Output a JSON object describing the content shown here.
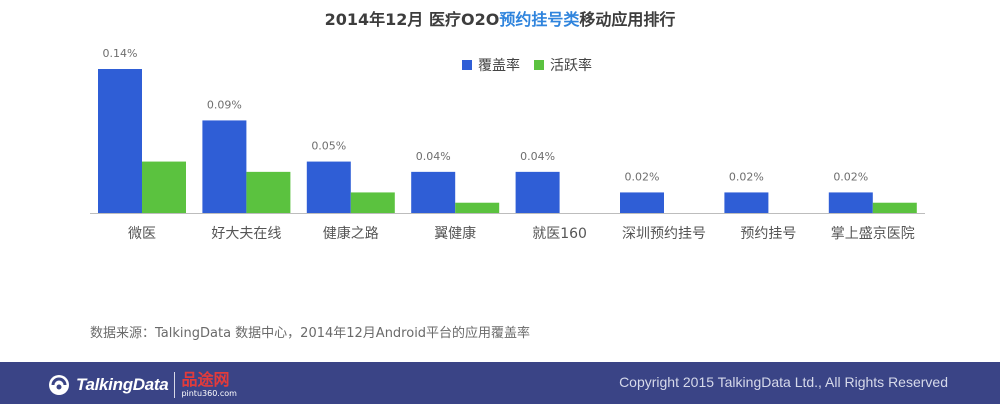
{
  "title": {
    "prefix": "2014年12月 医疗O2O",
    "highlight": "预约挂号类",
    "suffix": "移动应用排行"
  },
  "legend": {
    "coverage": "覆盖率",
    "activity": "活跃率"
  },
  "source": "数据来源：TalkingData 数据中心，2014年12月Android平台的应用覆盖率",
  "footer": {
    "brand": "TalkingData",
    "partner_cn": "品途网",
    "partner_url": "pintu360.com",
    "copyright": "Copyright 2015 TalkingData Ltd., All Rights Reserved"
  },
  "colors": {
    "coverage": "#2f5ed6",
    "activity": "#5bc23f",
    "footer_bg": "#3a4486",
    "highlight": "#2f84dd"
  },
  "chart_data": {
    "type": "bar",
    "title": "2014年12月 医疗O2O预约挂号类移动应用排行",
    "categories": [
      "微医",
      "好大夫在线",
      "健康之路",
      "翼健康",
      "就医160",
      "深圳预约挂号",
      "预约挂号",
      "掌上盛京医院"
    ],
    "series": [
      {
        "name": "覆盖率",
        "values": [
          0.14,
          0.09,
          0.05,
          0.04,
          0.04,
          0.02,
          0.02,
          0.02
        ]
      },
      {
        "name": "活跃率",
        "values": [
          0.05,
          0.04,
          0.02,
          0.01,
          0,
          0,
          0,
          0.01
        ]
      }
    ],
    "data_labels": [
      "0.14%",
      "0.09%",
      "0.05%",
      "0.04%",
      "0.04%",
      "0.02%",
      "0.02%",
      "0.02%"
    ],
    "ylim": [
      0,
      0.14
    ],
    "grid": false,
    "legend_position": "top-center"
  }
}
